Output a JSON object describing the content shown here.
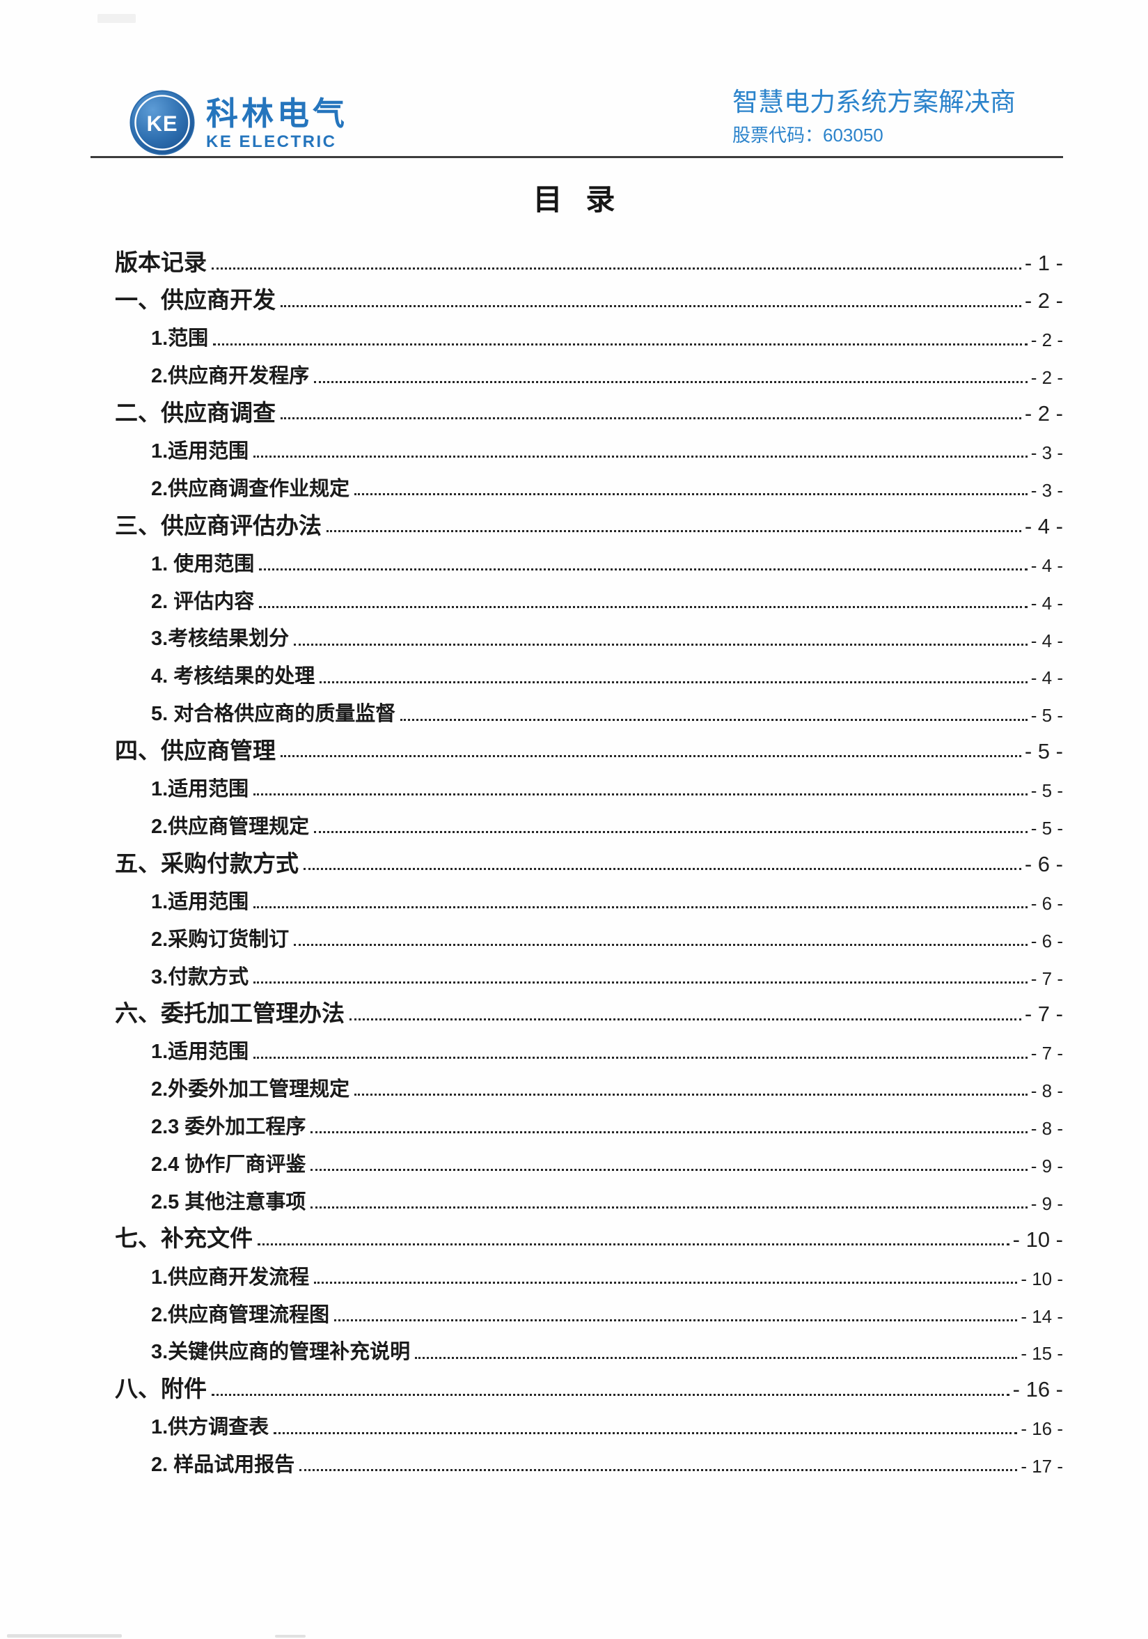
{
  "header": {
    "logo": {
      "monogram": "KE",
      "company_cn": "科林电气",
      "company_en": "KE ELECTRIC"
    },
    "slogan": "智慧电力系统方案解决商",
    "stock_label": "股票代码：603050"
  },
  "page_title": "目 录",
  "toc": {
    "items": [
      {
        "label": "版本记录",
        "page": "- 1 -",
        "level": 1
      },
      {
        "label": "一、供应商开发",
        "page": "- 2 -",
        "level": 1
      },
      {
        "label": "1.范围",
        "page": "- 2 -",
        "level": 2
      },
      {
        "label": "2.供应商开发程序",
        "page": "- 2 -",
        "level": 2
      },
      {
        "label": "二、供应商调查",
        "page": "- 2 -",
        "level": 1
      },
      {
        "label": "1.适用范围",
        "page": "- 3 -",
        "level": 2
      },
      {
        "label": "2.供应商调查作业规定",
        "page": "- 3 -",
        "level": 2
      },
      {
        "label": "三、供应商评估办法",
        "page": "- 4 -",
        "level": 1
      },
      {
        "label": "1.  使用范围",
        "page": "- 4 -",
        "level": 2
      },
      {
        "label": "2.  评估内容",
        "page": "- 4 -",
        "level": 2
      },
      {
        "label": "3.考核结果划分",
        "page": "- 4 -",
        "level": 2
      },
      {
        "label": "4.  考核结果的处理",
        "page": "- 4 -",
        "level": 2
      },
      {
        "label": "5.  对合格供应商的质量监督",
        "page": "- 5 -",
        "level": 2
      },
      {
        "label": "四、供应商管理",
        "page": "- 5 -",
        "level": 1
      },
      {
        "label": "1.适用范围",
        "page": "- 5 -",
        "level": 2
      },
      {
        "label": "2.供应商管理规定",
        "page": "- 5 -",
        "level": 2
      },
      {
        "label": "五、采购付款方式",
        "page": "- 6 -",
        "level": 1
      },
      {
        "label": "1.适用范围",
        "page": "- 6 -",
        "level": 2
      },
      {
        "label": "2.采购订货制订",
        "page": "- 6 -",
        "level": 2
      },
      {
        "label": "3.付款方式",
        "page": "- 7 -",
        "level": 2
      },
      {
        "label": "六、委托加工管理办法",
        "page": "- 7 -",
        "level": 1
      },
      {
        "label": "1.适用范围",
        "page": "- 7 -",
        "level": 2
      },
      {
        "label": "2.外委外加工管理规定",
        "page": "- 8 -",
        "level": 2
      },
      {
        "label": "2.3 委外加工程序",
        "page": "- 8 -",
        "level": 2
      },
      {
        "label": "2.4 协作厂商评鉴",
        "page": "- 9 -",
        "level": 2
      },
      {
        "label": "2.5 其他注意事项",
        "page": "- 9 -",
        "level": 2
      },
      {
        "label": "七、补充文件",
        "page": "- 10 -",
        "level": 1
      },
      {
        "label": "1.供应商开发流程",
        "page": "- 10 -",
        "level": 2
      },
      {
        "label": "2.供应商管理流程图",
        "page": "- 14 -",
        "level": 2
      },
      {
        "label": "3.关键供应商的管理补充说明",
        "page": "- 15 -",
        "level": 2
      },
      {
        "label": "八、附件",
        "page": "- 16 -",
        "level": 1
      },
      {
        "label": "1.供方调查表",
        "page": "- 16 -",
        "level": 2
      },
      {
        "label": "2. 样品试用报告",
        "page": "- 17 -",
        "level": 2
      }
    ]
  },
  "colors": {
    "brand_blue": "#2575bd",
    "slogan_blue": "#2b83cb",
    "rule_gray": "#3b3b3b",
    "text_black": "#1a1a1a"
  }
}
